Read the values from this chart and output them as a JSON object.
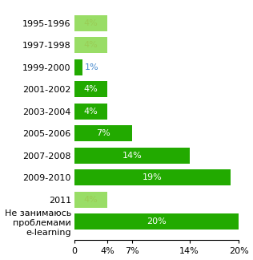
{
  "categories": [
    "1995-1996",
    "1997-1998",
    "1999-2000",
    "2001-2002",
    "2003-2004",
    "2005-2006",
    "2007-2008",
    "2009-2010",
    "2011",
    "Не занимаюсь\nпроблемами\ne-learning"
  ],
  "values": [
    4,
    4,
    1,
    4,
    4,
    7,
    14,
    19,
    4,
    20
  ],
  "bar_colors": [
    "#99dd66",
    "#99dd66",
    "#22aa00",
    "#22aa00",
    "#22aa00",
    "#22aa00",
    "#22aa00",
    "#22aa00",
    "#99dd66",
    "#22aa00"
  ],
  "label_colors_inside": [
    "#99cc55",
    "#99cc55",
    null,
    "#ffffff",
    "#ffffff",
    "#ffffff",
    "#ffffff",
    "#ffffff",
    "#99cc55",
    "#ffffff"
  ],
  "xlim": [
    0,
    20
  ],
  "xtick_values": [
    0,
    4,
    7,
    14,
    20
  ],
  "xtick_labels": [
    "0",
    "4%",
    "7%",
    "14%",
    "20%"
  ],
  "background_color": "#ffffff",
  "bar_label_fontsize": 8,
  "axis_fontsize": 8,
  "ylabel_fontsize": 8
}
